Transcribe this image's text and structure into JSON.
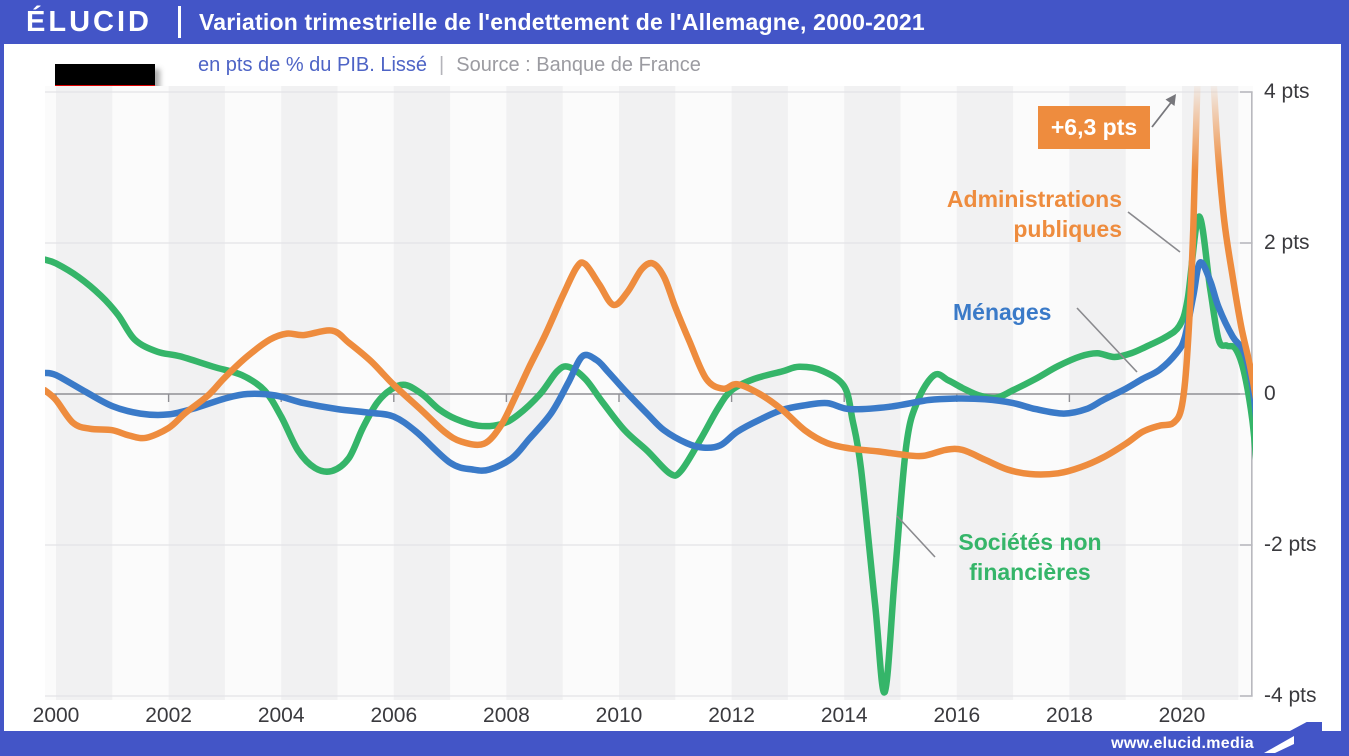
{
  "header": {
    "logo": "ÉLUCID",
    "title": "Variation trimestrielle de l'endettement de l'Allemagne, 2000-2021"
  },
  "subtitle": {
    "unit": "en pts de % du PIB. Lissé",
    "separator": "|",
    "source": "Source : Banque de France"
  },
  "flag": {
    "name": "germany-flag",
    "colors": [
      "#000000",
      "#dc0000",
      "#ffcd00"
    ]
  },
  "annotation": {
    "label": "+6,3 pts"
  },
  "footer": {
    "url": "www.elucid.media"
  },
  "colors": {
    "brand_blue": "#4355c7",
    "stripe_gray": "#f1f1f2",
    "plot_bg": "#fbfbfb",
    "grid_light": "#e4e4e7",
    "zero_line": "#8f8f94",
    "axis_line": "#b9b9bf",
    "pointer_gray": "#8a8a8e"
  },
  "chart_data": {
    "type": "line",
    "title": "Variation trimestrielle de l'endettement de l'Allemagne, 2000-2021",
    "ylabel": "pts de % du PIB (lissé)",
    "xlabel": "",
    "xlim": [
      1999.8,
      2021.45
    ],
    "ylim": [
      -4.07,
      4.08
    ],
    "grid": true,
    "legend_position": "inline-labels",
    "x_ticks": [
      2000,
      2002,
      2004,
      2006,
      2008,
      2010,
      2012,
      2014,
      2016,
      2018,
      2020
    ],
    "y_ticks": [
      {
        "v": 4,
        "label": "4 pts"
      },
      {
        "v": 2,
        "label": "2 pts"
      },
      {
        "v": 0,
        "label": "0"
      },
      {
        "v": -2,
        "label": "-2 pts"
      },
      {
        "v": -4,
        "label": "-4 pts"
      }
    ],
    "peak_annotation": {
      "text": "+6,3 pts",
      "x": 2020.4,
      "value": 6.3
    },
    "series": [
      {
        "name": "Administrations publiques",
        "color": "#ee8c3e",
        "points": [
          [
            1999.8,
            0.05
          ],
          [
            2000.0,
            -0.08
          ],
          [
            2000.3,
            -0.38
          ],
          [
            2000.6,
            -0.46
          ],
          [
            2001.0,
            -0.48
          ],
          [
            2001.3,
            -0.55
          ],
          [
            2001.6,
            -0.58
          ],
          [
            2002.0,
            -0.45
          ],
          [
            2002.3,
            -0.25
          ],
          [
            2002.7,
            -0.02
          ],
          [
            2003.0,
            0.22
          ],
          [
            2003.4,
            0.5
          ],
          [
            2003.8,
            0.72
          ],
          [
            2004.1,
            0.8
          ],
          [
            2004.4,
            0.78
          ],
          [
            2004.9,
            0.84
          ],
          [
            2005.2,
            0.68
          ],
          [
            2005.6,
            0.43
          ],
          [
            2006.0,
            0.12
          ],
          [
            2006.5,
            -0.22
          ],
          [
            2006.9,
            -0.5
          ],
          [
            2007.2,
            -0.63
          ],
          [
            2007.6,
            -0.66
          ],
          [
            2007.9,
            -0.42
          ],
          [
            2008.15,
            -0.05
          ],
          [
            2008.4,
            0.35
          ],
          [
            2008.7,
            0.8
          ],
          [
            2009.0,
            1.3
          ],
          [
            2009.25,
            1.68
          ],
          [
            2009.4,
            1.72
          ],
          [
            2009.65,
            1.45
          ],
          [
            2009.9,
            1.18
          ],
          [
            2010.15,
            1.35
          ],
          [
            2010.4,
            1.65
          ],
          [
            2010.6,
            1.73
          ],
          [
            2010.8,
            1.55
          ],
          [
            2011.0,
            1.15
          ],
          [
            2011.25,
            0.7
          ],
          [
            2011.55,
            0.2
          ],
          [
            2011.85,
            0.07
          ],
          [
            2012.1,
            0.13
          ],
          [
            2012.5,
            0.0
          ],
          [
            2012.9,
            -0.21
          ],
          [
            2013.3,
            -0.48
          ],
          [
            2013.7,
            -0.65
          ],
          [
            2014.1,
            -0.72
          ],
          [
            2014.6,
            -0.76
          ],
          [
            2015.0,
            -0.8
          ],
          [
            2015.4,
            -0.82
          ],
          [
            2015.8,
            -0.74
          ],
          [
            2016.1,
            -0.74
          ],
          [
            2016.5,
            -0.87
          ],
          [
            2016.9,
            -1.0
          ],
          [
            2017.3,
            -1.06
          ],
          [
            2017.8,
            -1.05
          ],
          [
            2018.2,
            -0.97
          ],
          [
            2018.6,
            -0.84
          ],
          [
            2019.0,
            -0.66
          ],
          [
            2019.3,
            -0.5
          ],
          [
            2019.6,
            -0.42
          ],
          [
            2019.85,
            -0.38
          ],
          [
            2020.0,
            -0.15
          ],
          [
            2020.1,
            0.6
          ],
          [
            2020.2,
            2.2
          ],
          [
            2020.3,
            4.8
          ],
          [
            2020.4,
            6.3
          ],
          [
            2020.5,
            5.0
          ],
          [
            2020.62,
            3.4
          ],
          [
            2020.75,
            2.3
          ],
          [
            2020.9,
            1.55
          ],
          [
            2021.05,
            0.9
          ],
          [
            2021.2,
            0.4
          ],
          [
            2021.35,
            -0.2
          ]
        ]
      },
      {
        "name": "Ménages",
        "color": "#3a7ac8",
        "points": [
          [
            1999.8,
            0.28
          ],
          [
            2000.0,
            0.25
          ],
          [
            2000.5,
            0.04
          ],
          [
            2001.0,
            -0.16
          ],
          [
            2001.5,
            -0.26
          ],
          [
            2002.0,
            -0.27
          ],
          [
            2002.5,
            -0.18
          ],
          [
            2003.0,
            -0.06
          ],
          [
            2003.4,
            0.0
          ],
          [
            2003.9,
            -0.02
          ],
          [
            2004.4,
            -0.12
          ],
          [
            2005.0,
            -0.2
          ],
          [
            2005.6,
            -0.25
          ],
          [
            2006.0,
            -0.3
          ],
          [
            2006.4,
            -0.5
          ],
          [
            2007.0,
            -0.91
          ],
          [
            2007.4,
            -1.0
          ],
          [
            2007.7,
            -1.0
          ],
          [
            2008.1,
            -0.85
          ],
          [
            2008.4,
            -0.6
          ],
          [
            2008.8,
            -0.25
          ],
          [
            2009.1,
            0.15
          ],
          [
            2009.35,
            0.5
          ],
          [
            2009.6,
            0.45
          ],
          [
            2009.8,
            0.3
          ],
          [
            2010.1,
            0.05
          ],
          [
            2010.5,
            -0.26
          ],
          [
            2010.8,
            -0.48
          ],
          [
            2011.2,
            -0.65
          ],
          [
            2011.5,
            -0.71
          ],
          [
            2011.8,
            -0.68
          ],
          [
            2012.1,
            -0.5
          ],
          [
            2012.5,
            -0.34
          ],
          [
            2012.9,
            -0.21
          ],
          [
            2013.3,
            -0.15
          ],
          [
            2013.7,
            -0.12
          ],
          [
            2014.1,
            -0.2
          ],
          [
            2014.8,
            -0.17
          ],
          [
            2015.5,
            -0.08
          ],
          [
            2016.0,
            -0.06
          ],
          [
            2016.5,
            -0.07
          ],
          [
            2017.0,
            -0.12
          ],
          [
            2017.4,
            -0.2
          ],
          [
            2017.9,
            -0.26
          ],
          [
            2018.3,
            -0.2
          ],
          [
            2018.6,
            -0.08
          ],
          [
            2019.0,
            0.07
          ],
          [
            2019.3,
            0.2
          ],
          [
            2019.6,
            0.32
          ],
          [
            2019.9,
            0.54
          ],
          [
            2020.05,
            0.75
          ],
          [
            2020.2,
            1.3
          ],
          [
            2020.32,
            1.74
          ],
          [
            2020.5,
            1.5
          ],
          [
            2020.65,
            1.15
          ],
          [
            2020.9,
            0.76
          ],
          [
            2021.1,
            0.56
          ],
          [
            2021.25,
            0.1
          ],
          [
            2021.35,
            -0.55
          ]
        ]
      },
      {
        "name": "Sociétés non financières",
        "color": "#35b569",
        "points": [
          [
            1999.8,
            1.78
          ],
          [
            2000.0,
            1.73
          ],
          [
            2000.4,
            1.55
          ],
          [
            2000.8,
            1.3
          ],
          [
            2001.1,
            1.05
          ],
          [
            2001.4,
            0.72
          ],
          [
            2001.8,
            0.56
          ],
          [
            2002.2,
            0.5
          ],
          [
            2002.8,
            0.36
          ],
          [
            2003.3,
            0.25
          ],
          [
            2003.7,
            0.05
          ],
          [
            2004.0,
            -0.3
          ],
          [
            2004.3,
            -0.75
          ],
          [
            2004.6,
            -0.98
          ],
          [
            2004.9,
            -1.02
          ],
          [
            2005.2,
            -0.85
          ],
          [
            2005.45,
            -0.45
          ],
          [
            2005.7,
            -0.12
          ],
          [
            2005.95,
            0.06
          ],
          [
            2006.2,
            0.12
          ],
          [
            2006.5,
            0.0
          ],
          [
            2006.8,
            -0.2
          ],
          [
            2007.1,
            -0.33
          ],
          [
            2007.5,
            -0.42
          ],
          [
            2007.9,
            -0.4
          ],
          [
            2008.2,
            -0.28
          ],
          [
            2008.6,
            0.0
          ],
          [
            2008.9,
            0.3
          ],
          [
            2009.1,
            0.36
          ],
          [
            2009.4,
            0.2
          ],
          [
            2009.7,
            -0.1
          ],
          [
            2010.1,
            -0.48
          ],
          [
            2010.5,
            -0.75
          ],
          [
            2010.9,
            -1.05
          ],
          [
            2011.1,
            -1.02
          ],
          [
            2011.45,
            -0.6
          ],
          [
            2011.75,
            -0.2
          ],
          [
            2012.0,
            0.05
          ],
          [
            2012.4,
            0.2
          ],
          [
            2012.9,
            0.3
          ],
          [
            2013.2,
            0.36
          ],
          [
            2013.6,
            0.31
          ],
          [
            2014.0,
            0.1
          ],
          [
            2014.15,
            -0.35
          ],
          [
            2014.3,
            -1.0
          ],
          [
            2014.55,
            -2.8
          ],
          [
            2014.72,
            -3.95
          ],
          [
            2014.9,
            -2.4
          ],
          [
            2015.1,
            -0.7
          ],
          [
            2015.3,
            -0.1
          ],
          [
            2015.6,
            0.25
          ],
          [
            2015.85,
            0.18
          ],
          [
            2016.1,
            0.08
          ],
          [
            2016.4,
            -0.02
          ],
          [
            2016.7,
            -0.05
          ],
          [
            2017.0,
            0.05
          ],
          [
            2017.4,
            0.2
          ],
          [
            2017.8,
            0.37
          ],
          [
            2018.2,
            0.5
          ],
          [
            2018.5,
            0.54
          ],
          [
            2018.8,
            0.49
          ],
          [
            2019.1,
            0.54
          ],
          [
            2019.4,
            0.64
          ],
          [
            2019.7,
            0.75
          ],
          [
            2019.95,
            0.9
          ],
          [
            2020.1,
            1.25
          ],
          [
            2020.3,
            2.35
          ],
          [
            2020.5,
            1.4
          ],
          [
            2020.65,
            0.72
          ],
          [
            2020.8,
            0.64
          ],
          [
            2020.95,
            0.6
          ],
          [
            2021.1,
            0.3
          ],
          [
            2021.25,
            -0.35
          ],
          [
            2021.35,
            -1.15
          ]
        ]
      }
    ]
  }
}
